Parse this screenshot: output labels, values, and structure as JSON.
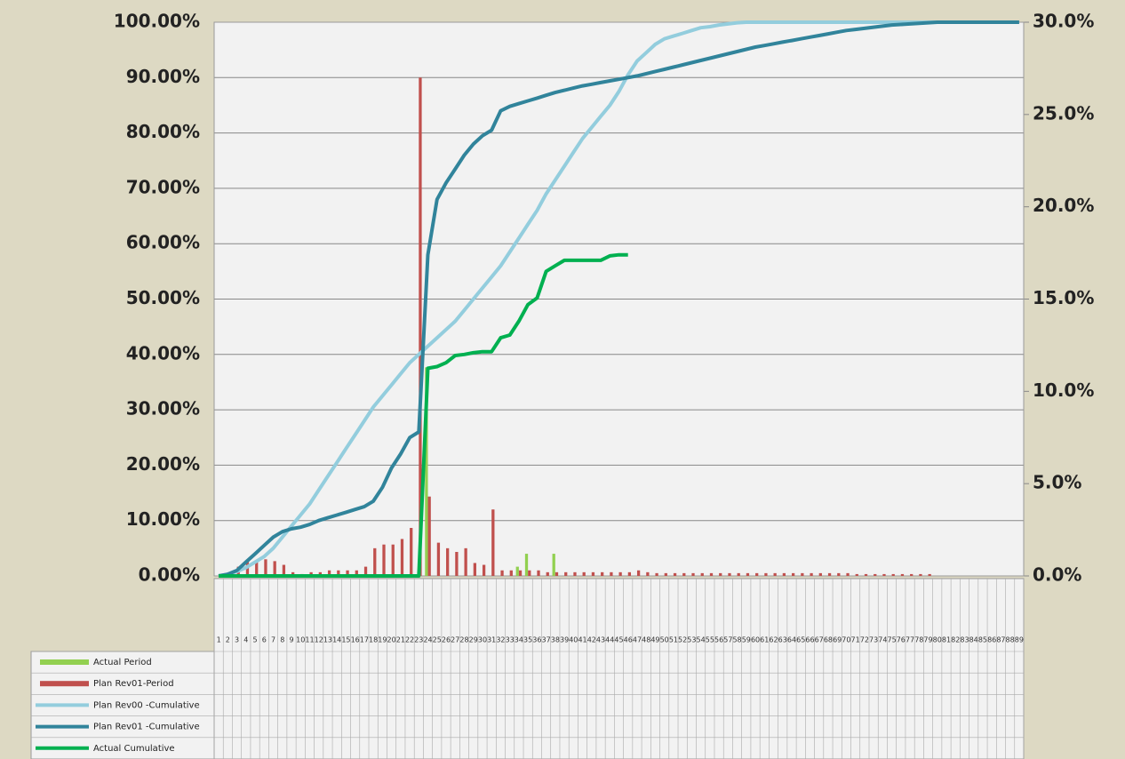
{
  "chart_data": {
    "type": "combo",
    "categories": [
      1,
      2,
      3,
      4,
      5,
      6,
      7,
      8,
      9,
      10,
      11,
      12,
      13,
      14,
      15,
      16,
      17,
      18,
      19,
      20,
      21,
      22,
      23,
      24,
      25,
      26,
      27,
      28,
      29,
      30,
      31,
      32,
      33,
      34,
      35,
      36,
      37,
      38,
      39,
      40,
      41,
      42,
      43,
      44,
      45,
      46,
      47,
      48,
      49,
      50,
      51,
      52,
      53,
      54,
      55,
      56,
      57,
      58,
      59,
      60,
      61,
      62,
      63,
      64,
      65,
      66,
      67,
      68,
      69,
      70,
      71,
      72,
      73,
      74,
      75,
      76,
      77,
      78,
      79,
      80,
      81,
      82,
      83,
      84,
      85,
      86,
      87,
      88,
      89
    ],
    "series": [
      {
        "name": "Actual Period",
        "type": "bar",
        "axis": "y2",
        "color": "#92d050",
        "values": [
          0,
          0,
          0,
          0,
          0,
          0,
          0,
          0,
          0,
          0,
          0,
          0,
          0,
          0,
          0,
          0,
          0,
          0,
          0,
          0,
          0,
          0,
          0,
          11.3,
          0,
          0,
          0,
          0,
          0,
          0,
          0,
          0,
          0,
          0.5,
          1.2,
          0,
          0,
          1.2,
          0,
          0,
          0,
          0,
          0,
          0,
          0,
          0,
          null,
          null,
          null,
          null,
          null,
          null,
          null,
          null,
          null,
          null,
          null,
          null,
          null,
          null,
          null,
          null,
          null,
          null,
          null,
          null,
          null,
          null,
          null,
          null,
          null,
          null,
          null,
          null,
          null,
          null,
          null,
          null,
          null,
          null,
          null,
          null,
          null,
          null,
          null,
          null,
          null,
          null,
          null
        ]
      },
      {
        "name": "Plan Rev01-Period",
        "type": "bar",
        "axis": "y2",
        "color": "#c0504d",
        "values": [
          0.1,
          0.2,
          0.5,
          0.8,
          0.8,
          0.9,
          0.8,
          0.6,
          0.2,
          0.1,
          0.2,
          0.2,
          0.3,
          0.3,
          0.3,
          0.3,
          0.5,
          1.5,
          1.7,
          1.7,
          2,
          2.6,
          27,
          4.3,
          1.8,
          1.5,
          1.3,
          1.5,
          0.7,
          0.6,
          3.6,
          0.3,
          0.3,
          0.3,
          0.3,
          0.3,
          0.2,
          0.2,
          0.2,
          0.2,
          0.2,
          0.2,
          0.2,
          0.2,
          0.2,
          0.2,
          0.3,
          0.2,
          0.15,
          0.15,
          0.15,
          0.15,
          0.15,
          0.15,
          0.15,
          0.15,
          0.15,
          0.15,
          0.15,
          0.15,
          0.15,
          0.15,
          0.15,
          0.15,
          0.15,
          0.15,
          0.15,
          0.15,
          0.15,
          0.15,
          0.1,
          0.1,
          0.1,
          0.1,
          0.1,
          0.1,
          0.1,
          0.1,
          0.1,
          0,
          0,
          0,
          0,
          0,
          0,
          0,
          0,
          0,
          0
        ]
      },
      {
        "name": "Plan Rev00 -Cumulative",
        "type": "line",
        "axis": "y",
        "color": "#93cddd",
        "values": [
          0,
          0.3,
          0.8,
          1.5,
          2.5,
          3.5,
          5,
          7,
          9,
          11,
          13,
          15.5,
          18,
          20.5,
          23,
          25.5,
          28,
          30.5,
          32.5,
          34.5,
          36.5,
          38.5,
          40,
          41.5,
          43,
          44.5,
          46,
          48,
          50,
          52,
          54,
          56,
          58.5,
          61,
          63.5,
          66,
          69,
          71.5,
          74,
          76.5,
          79,
          81,
          83,
          85,
          87.5,
          90.5,
          93,
          94.5,
          96,
          97,
          97.5,
          98,
          98.5,
          99,
          99.2,
          99.5,
          99.7,
          99.9,
          100,
          100,
          100,
          100,
          100,
          100,
          100,
          100,
          100,
          100,
          100,
          100,
          100,
          100,
          100,
          100,
          100,
          100,
          100,
          100,
          100,
          100,
          100,
          100,
          100,
          100,
          100,
          100,
          100,
          100,
          100
        ]
      },
      {
        "name": "Plan Rev01 -Cumulative",
        "type": "line",
        "axis": "y",
        "color": "#31849b",
        "values": [
          0,
          0.3,
          1,
          2.5,
          4,
          5.5,
          7,
          8,
          8.5,
          8.8,
          9.3,
          10,
          10.5,
          11,
          11.5,
          12,
          12.5,
          13.5,
          16,
          19.5,
          22,
          25,
          26,
          58,
          68,
          71,
          73.5,
          76,
          78,
          79.5,
          80.5,
          84,
          84.8,
          85.3,
          85.8,
          86.3,
          86.8,
          87.3,
          87.7,
          88.1,
          88.5,
          88.8,
          89.1,
          89.4,
          89.7,
          90,
          90.3,
          90.7,
          91.1,
          91.5,
          91.9,
          92.3,
          92.7,
          93.1,
          93.5,
          93.9,
          94.3,
          94.7,
          95.1,
          95.5,
          95.8,
          96.1,
          96.4,
          96.7,
          97,
          97.3,
          97.6,
          97.9,
          98.2,
          98.5,
          98.7,
          98.9,
          99.1,
          99.3,
          99.5,
          99.6,
          99.7,
          99.8,
          99.9,
          100,
          100,
          100,
          100,
          100,
          100,
          100,
          100,
          100,
          100
        ]
      },
      {
        "name": "Actual Cumulative",
        "type": "line",
        "axis": "y",
        "color": "#00b050",
        "values": [
          0,
          0,
          0,
          0,
          0,
          0,
          0,
          0,
          0,
          0,
          0,
          0,
          0,
          0,
          0,
          0,
          0,
          0,
          0,
          0,
          0,
          0,
          0,
          37.5,
          37.8,
          38.5,
          39.8,
          40,
          40.3,
          40.5,
          40.5,
          43,
          43.5,
          46,
          49,
          50.2,
          55,
          56,
          57,
          57,
          57,
          57,
          57,
          57.8,
          58,
          58,
          null,
          null,
          null,
          null,
          null,
          null,
          null,
          null,
          null,
          null,
          null,
          null,
          null,
          null,
          null,
          null,
          null,
          null,
          null,
          null,
          null,
          null,
          null,
          null,
          null,
          null,
          null,
          null,
          null,
          null,
          null,
          null,
          null,
          null,
          null,
          null,
          null,
          null,
          null,
          null,
          null,
          null,
          null
        ]
      }
    ],
    "ylim": [
      0,
      100
    ],
    "yticks": [
      {
        "value": 0,
        "label": "0.00%"
      },
      {
        "value": 10,
        "label": "10.00%"
      },
      {
        "value": 20,
        "label": "20.00%"
      },
      {
        "value": 30,
        "label": "30.00%"
      },
      {
        "value": 40,
        "label": "40.00%"
      },
      {
        "value": 50,
        "label": "50.00%"
      },
      {
        "value": 60,
        "label": "60.00%"
      },
      {
        "value": 70,
        "label": "70.00%"
      },
      {
        "value": 80,
        "label": "80.00%"
      },
      {
        "value": 90,
        "label": "90.00%"
      },
      {
        "value": 100,
        "label": "100.00%"
      }
    ],
    "y2lim": [
      0,
      30
    ],
    "y2ticks": [
      {
        "value": 0,
        "label": "0.0%"
      },
      {
        "value": 5,
        "label": "5.0%"
      },
      {
        "value": 10,
        "label": "10.0%"
      },
      {
        "value": 15,
        "label": "15.0%"
      },
      {
        "value": 20,
        "label": "20.0%"
      },
      {
        "value": 25,
        "label": "25.0%"
      },
      {
        "value": 30,
        "label": "30.0%"
      }
    ],
    "grid": true
  }
}
